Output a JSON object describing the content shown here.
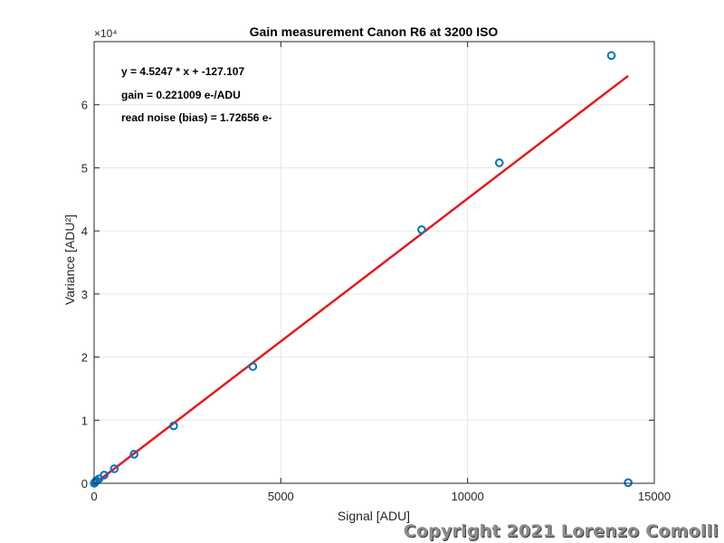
{
  "chart_data": {
    "type": "scatter",
    "title": "Gain measurement Canon R6 at 3200 ISO",
    "xlabel": "Signal [ADU]",
    "ylabel": "Variance [ADU²]",
    "exponent_label": "×10⁴",
    "xlim": [
      0,
      15000
    ],
    "ylim": [
      0,
      70000
    ],
    "xticks": [
      0,
      5000,
      10000,
      15000
    ],
    "xtick_labels": [
      "0",
      "5000",
      "10000",
      "15000"
    ],
    "yticks": [
      0,
      10000,
      20000,
      30000,
      40000,
      50000,
      60000
    ],
    "ytick_labels": [
      "0",
      "1",
      "2",
      "3",
      "4",
      "5",
      "6"
    ],
    "grid": true,
    "series": [
      {
        "kind": "scatter",
        "marker": "circle-open",
        "color": "#0072BD",
        "x": [
          5,
          15,
          30,
          60,
          130,
          270,
          540,
          1070,
          2130,
          4250,
          8770,
          10850,
          13850,
          14300
        ],
        "y": [
          0,
          100,
          200,
          400,
          700,
          1300,
          2300,
          4600,
          9100,
          18500,
          40200,
          50800,
          67800,
          100
        ]
      },
      {
        "kind": "line",
        "color": "#E41A1C",
        "slope": 4.5247,
        "intercept": -127.107,
        "x_range": [
          0,
          14300
        ]
      }
    ],
    "annotations": [
      "y = 4.5247 * x + -127.107",
      "gain = 0.221009 e-/ADU",
      "read noise (bias) = 1.72656 e-"
    ]
  },
  "watermark": "Copyright 2021 Lorenzo Comolli"
}
